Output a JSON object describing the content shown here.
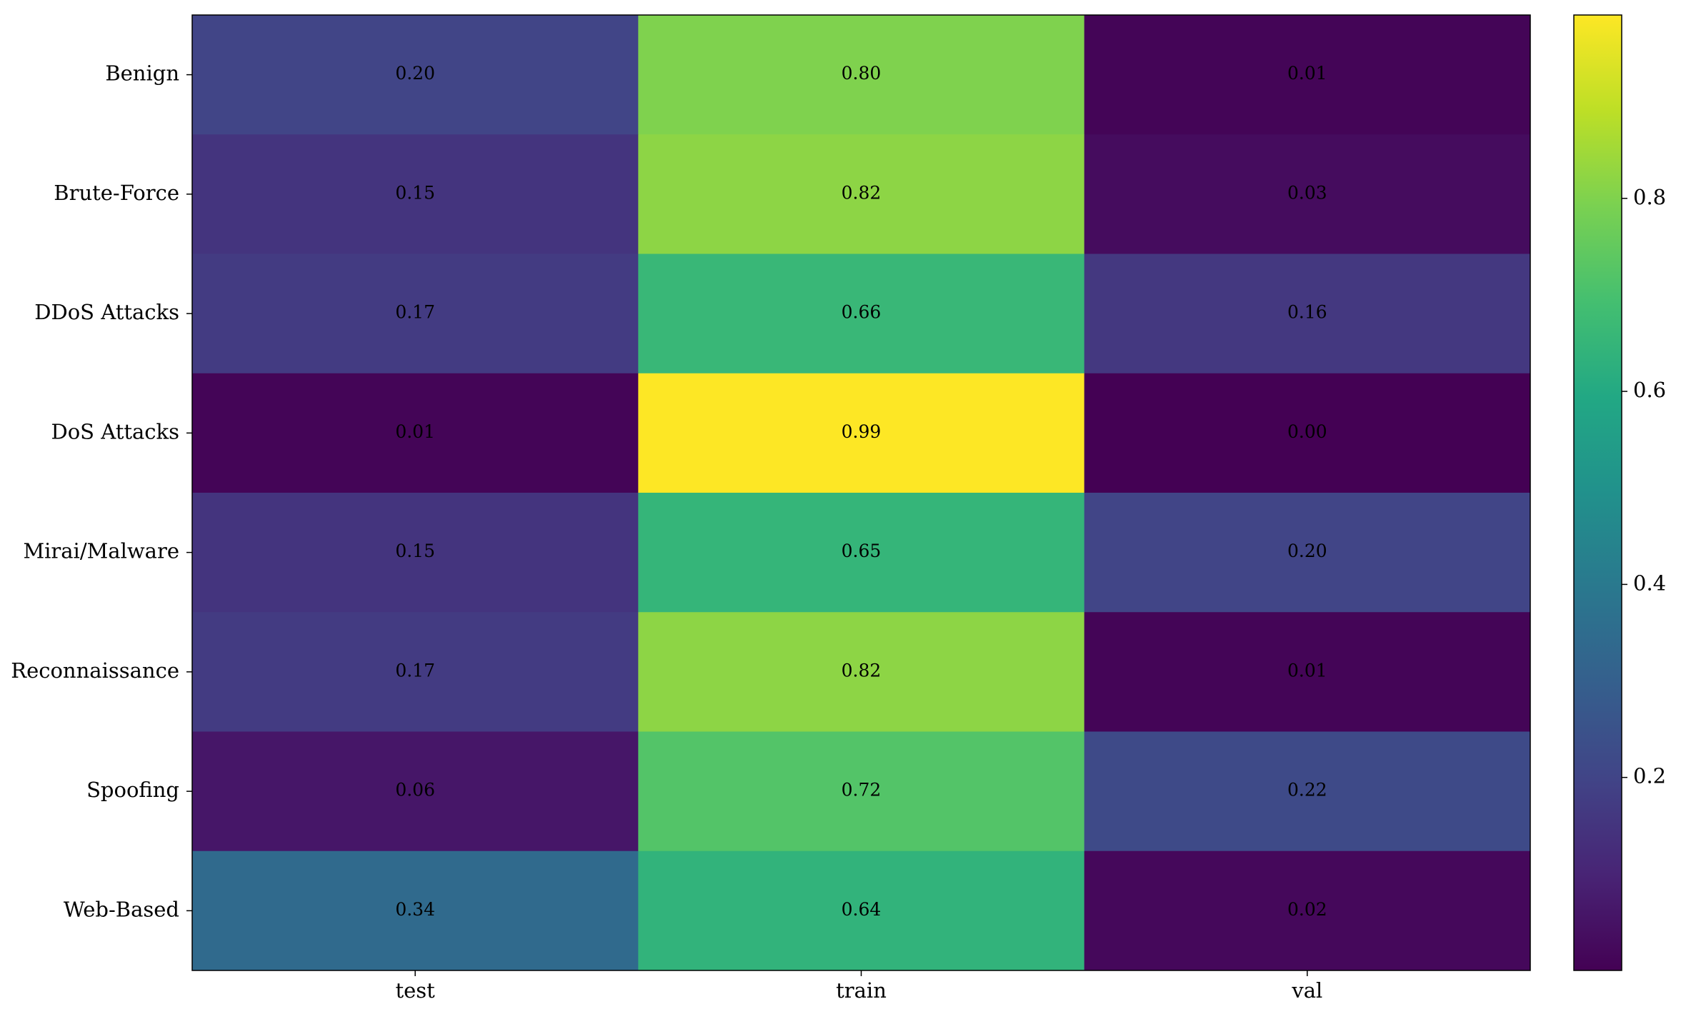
{
  "chart_data": {
    "type": "heatmap",
    "colormap": "viridis",
    "x_categories": [
      "test",
      "train",
      "val"
    ],
    "y_categories": [
      "Benign",
      "Brute-Force",
      "DDoS Attacks",
      "DoS Attacks",
      "Mirai/Malware",
      "Reconnaissance",
      "Spoofing",
      "Web-Based"
    ],
    "values": [
      [
        0.2,
        0.8,
        0.01
      ],
      [
        0.15,
        0.82,
        0.03
      ],
      [
        0.17,
        0.66,
        0.16
      ],
      [
        0.01,
        0.99,
        0.0
      ],
      [
        0.15,
        0.65,
        0.2
      ],
      [
        0.17,
        0.82,
        0.01
      ],
      [
        0.06,
        0.72,
        0.22
      ],
      [
        0.34,
        0.64,
        0.02
      ]
    ],
    "value_labels": [
      [
        "0.20",
        "0.80",
        "0.01"
      ],
      [
        "0.15",
        "0.82",
        "0.03"
      ],
      [
        "0.17",
        "0.66",
        "0.16"
      ],
      [
        "0.01",
        "0.99",
        "0.00"
      ],
      [
        "0.15",
        "0.65",
        "0.20"
      ],
      [
        "0.17",
        "0.82",
        "0.01"
      ],
      [
        "0.06",
        "0.72",
        "0.22"
      ],
      [
        "0.34",
        "0.64",
        "0.02"
      ]
    ],
    "clim": [
      0,
      0.99
    ],
    "cticks": [
      0.2,
      0.4,
      0.6,
      0.8
    ]
  }
}
